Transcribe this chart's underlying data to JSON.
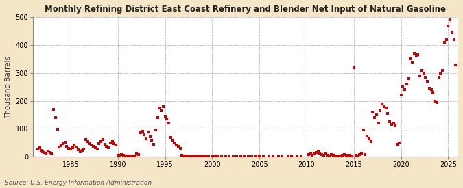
{
  "title": "Monthly Refining District East Coast Refinery and Blender Net Input of Natural Gasoline",
  "ylabel": "Thousand Barrels",
  "source": "Source: U.S. Energy Information Administration",
  "background_color": "#f5e6c8",
  "plot_bg_color": "#ffffff",
  "dot_color": "#cc0000",
  "xlim": [
    1981.0,
    2026.0
  ],
  "ylim": [
    0,
    500
  ],
  "xticks": [
    1985,
    1990,
    1995,
    2000,
    2005,
    2010,
    2015,
    2020,
    2025
  ],
  "yticks": [
    0,
    100,
    200,
    300,
    400,
    500
  ],
  "data": [
    [
      1981.5,
      28
    ],
    [
      1981.7,
      32
    ],
    [
      1981.9,
      22
    ],
    [
      1982.0,
      18
    ],
    [
      1982.2,
      14
    ],
    [
      1982.4,
      12
    ],
    [
      1982.6,
      20
    ],
    [
      1982.8,
      15
    ],
    [
      1983.0,
      10
    ],
    [
      1983.2,
      170
    ],
    [
      1983.4,
      140
    ],
    [
      1983.6,
      98
    ],
    [
      1983.8,
      35
    ],
    [
      1984.0,
      40
    ],
    [
      1984.2,
      48
    ],
    [
      1984.4,
      52
    ],
    [
      1984.6,
      38
    ],
    [
      1984.8,
      30
    ],
    [
      1985.0,
      28
    ],
    [
      1985.2,
      32
    ],
    [
      1985.4,
      42
    ],
    [
      1985.6,
      35
    ],
    [
      1985.8,
      25
    ],
    [
      1986.0,
      18
    ],
    [
      1986.2,
      22
    ],
    [
      1986.4,
      28
    ],
    [
      1986.6,
      62
    ],
    [
      1986.8,
      55
    ],
    [
      1987.0,
      48
    ],
    [
      1987.2,
      42
    ],
    [
      1987.4,
      38
    ],
    [
      1987.6,
      32
    ],
    [
      1987.8,
      28
    ],
    [
      1988.0,
      48
    ],
    [
      1988.2,
      55
    ],
    [
      1988.4,
      62
    ],
    [
      1988.6,
      45
    ],
    [
      1988.8,
      38
    ],
    [
      1989.0,
      32
    ],
    [
      1989.2,
      50
    ],
    [
      1989.4,
      55
    ],
    [
      1989.6,
      48
    ],
    [
      1989.8,
      42
    ],
    [
      1990.0,
      6
    ],
    [
      1990.2,
      4
    ],
    [
      1990.4,
      8
    ],
    [
      1990.6,
      5
    ],
    [
      1990.8,
      3
    ],
    [
      1991.0,
      2
    ],
    [
      1991.2,
      1
    ],
    [
      1991.4,
      3
    ],
    [
      1991.6,
      0
    ],
    [
      1991.8,
      2
    ],
    [
      1992.0,
      10
    ],
    [
      1992.2,
      8
    ],
    [
      1992.4,
      85
    ],
    [
      1992.6,
      92
    ],
    [
      1992.8,
      78
    ],
    [
      1993.0,
      65
    ],
    [
      1993.2,
      88
    ],
    [
      1993.4,
      72
    ],
    [
      1993.6,
      60
    ],
    [
      1993.8,
      45
    ],
    [
      1994.0,
      95
    ],
    [
      1994.2,
      140
    ],
    [
      1994.4,
      175
    ],
    [
      1994.6,
      165
    ],
    [
      1994.8,
      180
    ],
    [
      1995.0,
      145
    ],
    [
      1995.2,
      135
    ],
    [
      1995.4,
      120
    ],
    [
      1995.6,
      68
    ],
    [
      1995.8,
      58
    ],
    [
      1996.0,
      50
    ],
    [
      1996.2,
      42
    ],
    [
      1996.4,
      38
    ],
    [
      1996.6,
      30
    ],
    [
      1996.8,
      5
    ],
    [
      1997.0,
      3
    ],
    [
      1997.2,
      2
    ],
    [
      1997.4,
      1
    ],
    [
      1997.6,
      0
    ],
    [
      1997.8,
      2
    ],
    [
      1998.0,
      1
    ],
    [
      1998.2,
      0
    ],
    [
      1998.4,
      1
    ],
    [
      1998.6,
      2
    ],
    [
      1998.8,
      1
    ],
    [
      1999.0,
      0
    ],
    [
      1999.2,
      2
    ],
    [
      1999.4,
      1
    ],
    [
      1999.6,
      0
    ],
    [
      2000.0,
      1
    ],
    [
      2000.2,
      0
    ],
    [
      2000.4,
      2
    ],
    [
      2000.6,
      1
    ],
    [
      2001.0,
      0
    ],
    [
      2001.4,
      1
    ],
    [
      2001.8,
      0
    ],
    [
      2002.2,
      1
    ],
    [
      2002.6,
      0
    ],
    [
      2003.0,
      2
    ],
    [
      2003.4,
      1
    ],
    [
      2003.8,
      0
    ],
    [
      2004.2,
      1
    ],
    [
      2004.6,
      0
    ],
    [
      2005.0,
      2
    ],
    [
      2005.4,
      1
    ],
    [
      2006.0,
      0
    ],
    [
      2006.4,
      1
    ],
    [
      2007.0,
      0
    ],
    [
      2007.4,
      1
    ],
    [
      2008.0,
      0
    ],
    [
      2008.4,
      2
    ],
    [
      2009.0,
      1
    ],
    [
      2009.4,
      0
    ],
    [
      2010.2,
      8
    ],
    [
      2010.4,
      12
    ],
    [
      2010.6,
      5
    ],
    [
      2010.8,
      10
    ],
    [
      2011.0,
      15
    ],
    [
      2011.2,
      18
    ],
    [
      2011.4,
      12
    ],
    [
      2011.6,
      8
    ],
    [
      2011.8,
      5
    ],
    [
      2012.0,
      12
    ],
    [
      2012.2,
      6
    ],
    [
      2012.4,
      3
    ],
    [
      2012.6,
      8
    ],
    [
      2012.8,
      5
    ],
    [
      2013.0,
      2
    ],
    [
      2013.2,
      1
    ],
    [
      2013.4,
      3
    ],
    [
      2013.6,
      2
    ],
    [
      2013.8,
      5
    ],
    [
      2014.0,
      8
    ],
    [
      2014.2,
      6
    ],
    [
      2014.4,
      3
    ],
    [
      2014.6,
      4
    ],
    [
      2014.8,
      2
    ],
    [
      2015.0,
      320
    ],
    [
      2015.2,
      5
    ],
    [
      2015.4,
      2
    ],
    [
      2015.6,
      8
    ],
    [
      2015.8,
      12
    ],
    [
      2016.0,
      95
    ],
    [
      2016.2,
      8
    ],
    [
      2016.4,
      75
    ],
    [
      2016.6,
      65
    ],
    [
      2016.8,
      55
    ],
    [
      2017.0,
      160
    ],
    [
      2017.2,
      140
    ],
    [
      2017.4,
      150
    ],
    [
      2017.6,
      120
    ],
    [
      2017.8,
      165
    ],
    [
      2018.0,
      190
    ],
    [
      2018.2,
      180
    ],
    [
      2018.4,
      175
    ],
    [
      2018.6,
      155
    ],
    [
      2018.8,
      125
    ],
    [
      2019.0,
      115
    ],
    [
      2019.2,
      120
    ],
    [
      2019.4,
      110
    ],
    [
      2019.6,
      45
    ],
    [
      2019.8,
      50
    ],
    [
      2020.0,
      220
    ],
    [
      2020.2,
      250
    ],
    [
      2020.4,
      240
    ],
    [
      2020.6,
      260
    ],
    [
      2020.8,
      280
    ],
    [
      2021.0,
      350
    ],
    [
      2021.2,
      340
    ],
    [
      2021.4,
      370
    ],
    [
      2021.6,
      360
    ],
    [
      2021.8,
      365
    ],
    [
      2022.0,
      290
    ],
    [
      2022.2,
      310
    ],
    [
      2022.4,
      300
    ],
    [
      2022.6,
      285
    ],
    [
      2022.8,
      270
    ],
    [
      2023.0,
      245
    ],
    [
      2023.2,
      240
    ],
    [
      2023.4,
      230
    ],
    [
      2023.6,
      200
    ],
    [
      2023.8,
      195
    ],
    [
      2024.0,
      285
    ],
    [
      2024.2,
      300
    ],
    [
      2024.4,
      310
    ],
    [
      2024.6,
      410
    ],
    [
      2024.8,
      420
    ],
    [
      2025.0,
      470
    ],
    [
      2025.2,
      490
    ],
    [
      2025.4,
      445
    ],
    [
      2025.6,
      420
    ],
    [
      2025.8,
      330
    ]
  ]
}
